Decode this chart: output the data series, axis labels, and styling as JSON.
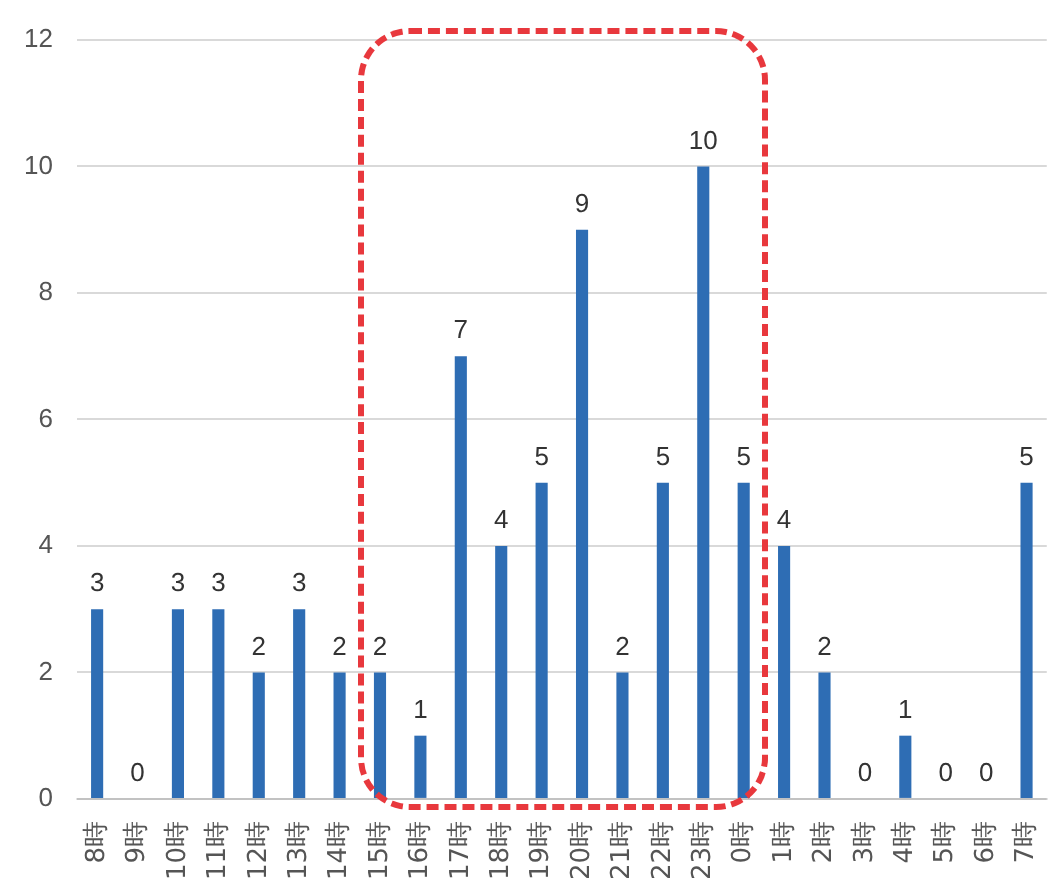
{
  "chart_data": {
    "type": "bar",
    "categories": [
      "8時",
      "9時",
      "10時",
      "11時",
      "12時",
      "13時",
      "14時",
      "15時",
      "16時",
      "17時",
      "18時",
      "19時",
      "20時",
      "21時",
      "22時",
      "23時",
      "0時",
      "1時",
      "2時",
      "3時",
      "4時",
      "5時",
      "6時",
      "7時"
    ],
    "values": [
      3,
      0,
      3,
      3,
      2,
      3,
      2,
      2,
      1,
      7,
      4,
      5,
      9,
      2,
      5,
      10,
      5,
      4,
      2,
      0,
      1,
      0,
      0,
      5
    ],
    "color": "#2e6db4",
    "ylim": [
      0,
      12
    ],
    "yticks": [
      0,
      2,
      4,
      6,
      8,
      10,
      12
    ],
    "grid": "y",
    "data_labels": true
  }
}
